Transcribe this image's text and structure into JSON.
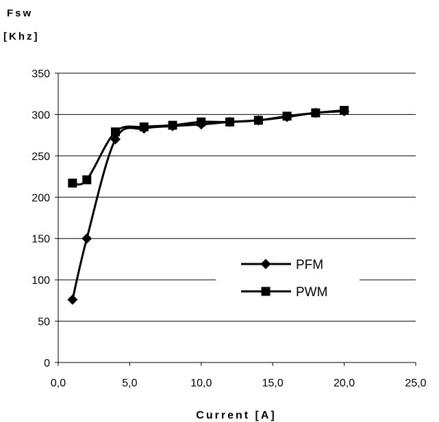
{
  "chart_data": {
    "type": "line",
    "ylabel_line1": "Fsw",
    "ylabel_line2": "[Khz]",
    "xlabel": "Current [A]",
    "xlim": [
      0,
      25
    ],
    "ylim": [
      0,
      350
    ],
    "x_ticks": [
      "0,0",
      "5,0",
      "10,0",
      "15,0",
      "20,0",
      "25,0"
    ],
    "y_ticks": [
      "0",
      "50",
      "100",
      "150",
      "200",
      "250",
      "300",
      "350"
    ],
    "grid": "horizontal",
    "legend_position": "center-right",
    "series": [
      {
        "name": "PFM",
        "marker": "diamond",
        "color": "#000000",
        "x": [
          1,
          2,
          4,
          6,
          8,
          10,
          12,
          14,
          16,
          18,
          20
        ],
        "y": [
          76,
          150,
          270,
          283,
          286,
          288,
          291,
          293,
          297,
          302,
          304
        ]
      },
      {
        "name": "PWM",
        "marker": "square",
        "color": "#000000",
        "x": [
          1,
          2,
          4,
          6,
          8,
          10,
          12,
          14,
          16,
          18,
          20
        ],
        "y": [
          217,
          221,
          279,
          285,
          287,
          291,
          291,
          293,
          298,
          302,
          305
        ]
      }
    ]
  }
}
